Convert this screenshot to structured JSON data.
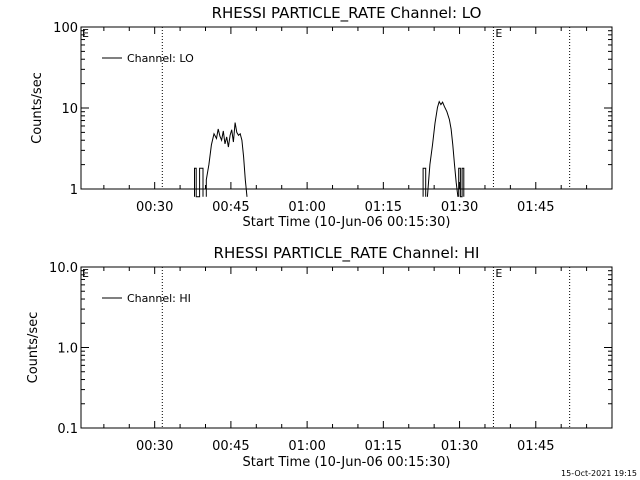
{
  "footer": {
    "timestamp": "15-Oct-2021 19:15"
  },
  "chart_data": [
    {
      "type": "line",
      "title": "RHESSI PARTICLE_RATE Channel: LO",
      "xlabel": "Start Time (10-Jun-06 00:15:30)",
      "ylabel": "Counts/sec",
      "yscale": "log",
      "ylim": [
        1,
        100
      ],
      "xlim": [
        "00:15:30",
        "02:00:00"
      ],
      "xticks": [
        "00:30",
        "00:45",
        "01:00",
        "01:15",
        "01:30",
        "01:45"
      ],
      "yticks": [
        "1",
        "10",
        "100"
      ],
      "legend": {
        "label": "Channel: LO",
        "placement": "top-left"
      },
      "markers": [
        {
          "time": "00:31:30",
          "label": ""
        },
        {
          "time": "01:36:40",
          "label": "E"
        },
        {
          "time": "01:51:40",
          "label": ""
        }
      ],
      "edge_label": "E",
      "series": [
        {
          "name": "Channel: LO",
          "segments": [
            [
              [
                "00:37:50",
                0.8
              ],
              [
                "00:37:50",
                1.8
              ],
              [
                "00:38:10",
                1.8
              ],
              [
                "00:38:10",
                0.8
              ],
              [
                "00:38:50",
                0.8
              ],
              [
                "00:38:50",
                1.8
              ],
              [
                "00:39:30",
                1.8
              ],
              [
                "00:39:30",
                0.8
              ]
            ],
            [
              [
                "00:40:10",
                0.8
              ],
              [
                "00:40:10",
                1.3
              ],
              [
                "00:40:40",
                2.0
              ],
              [
                "00:41:10",
                3.5
              ],
              [
                "00:41:40",
                4.8
              ],
              [
                "00:42:10",
                4.2
              ],
              [
                "00:42:30",
                5.5
              ],
              [
                "00:42:50",
                4.5
              ],
              [
                "00:43:10",
                4.0
              ],
              [
                "00:43:30",
                5.2
              ],
              [
                "00:43:50",
                3.6
              ],
              [
                "00:44:10",
                4.4
              ],
              [
                "00:44:30",
                3.3
              ],
              [
                "00:44:50",
                4.6
              ],
              [
                "00:45:10",
                5.4
              ],
              [
                "00:45:30",
                3.8
              ],
              [
                "00:45:50",
                6.6
              ],
              [
                "00:46:10",
                5.0
              ],
              [
                "00:46:30",
                4.6
              ],
              [
                "00:46:50",
                4.8
              ],
              [
                "00:47:10",
                4.0
              ],
              [
                "00:47:30",
                2.5
              ],
              [
                "00:47:50",
                1.3
              ],
              [
                "00:48:10",
                0.8
              ]
            ],
            [
              [
                "01:22:50",
                0.8
              ],
              [
                "01:22:50",
                1.8
              ],
              [
                "01:23:20",
                1.8
              ],
              [
                "01:23:20",
                0.8
              ]
            ],
            [
              [
                "01:23:40",
                0.8
              ],
              [
                "01:24:10",
                2.0
              ],
              [
                "01:24:40",
                3.5
              ],
              [
                "01:25:10",
                6.5
              ],
              [
                "01:25:40",
                10.2
              ],
              [
                "01:26:00",
                12.0
              ],
              [
                "01:26:20",
                11.0
              ],
              [
                "01:26:40",
                11.8
              ],
              [
                "01:27:00",
                10.5
              ],
              [
                "01:27:30",
                9.0
              ],
              [
                "01:28:00",
                7.2
              ],
              [
                "01:28:20",
                5.5
              ],
              [
                "01:28:40",
                3.5
              ],
              [
                "01:29:00",
                2.0
              ],
              [
                "01:29:20",
                1.2
              ],
              [
                "01:29:40",
                0.8
              ]
            ],
            [
              [
                "01:29:50",
                0.8
              ],
              [
                "01:29:50",
                1.8
              ],
              [
                "01:30:10",
                1.8
              ],
              [
                "01:30:10",
                0.8
              ],
              [
                "01:30:30",
                0.8
              ],
              [
                "01:30:30",
                1.8
              ],
              [
                "01:30:50",
                1.8
              ],
              [
                "01:30:50",
                0.8
              ]
            ]
          ]
        }
      ]
    },
    {
      "type": "line",
      "title": "RHESSI PARTICLE_RATE Channel: HI",
      "xlabel": "Start Time (10-Jun-06 00:15:30)",
      "ylabel": "Counts/sec",
      "yscale": "log",
      "ylim": [
        0.1,
        10
      ],
      "xlim": [
        "00:15:30",
        "02:00:00"
      ],
      "xticks": [
        "00:30",
        "00:45",
        "01:00",
        "01:15",
        "01:30",
        "01:45"
      ],
      "yticks": [
        "0.1",
        "1.0",
        "10.0"
      ],
      "legend": {
        "label": "Channel: HI",
        "placement": "top-left"
      },
      "markers": [
        {
          "time": "00:31:30",
          "label": ""
        },
        {
          "time": "01:36:40",
          "label": "E"
        },
        {
          "time": "01:51:40",
          "label": ""
        }
      ],
      "edge_label": "E",
      "series": [
        {
          "name": "Channel: HI",
          "segments": []
        }
      ]
    }
  ]
}
